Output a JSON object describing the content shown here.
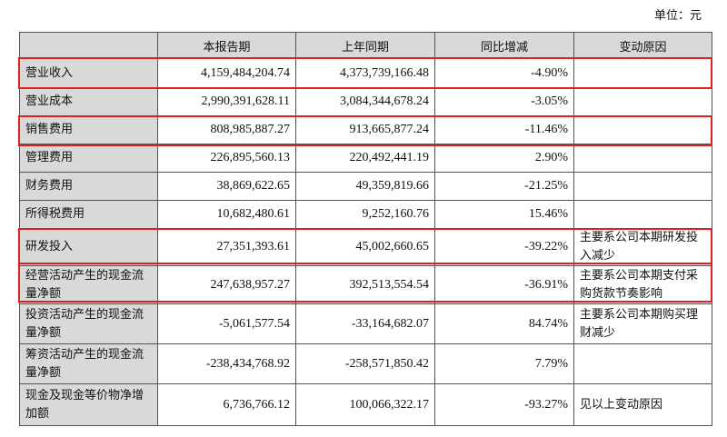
{
  "unit_label": "单位：元",
  "headers": [
    "",
    "本报告期",
    "上年同期",
    "同比增减",
    "变动原因"
  ],
  "rows": [
    {
      "item": "营业收入",
      "current": "4,159,484,204.74",
      "prior": "4,373,739,166.48",
      "change": "-4.90%",
      "reason": "",
      "highlighted": true
    },
    {
      "item": "营业成本",
      "current": "2,990,391,628.11",
      "prior": "3,084,344,678.24",
      "change": "-3.05%",
      "reason": "",
      "highlighted": false
    },
    {
      "item": "销售费用",
      "current": "808,985,887.27",
      "prior": "913,665,877.24",
      "change": "-11.46%",
      "reason": "",
      "highlighted": true
    },
    {
      "item": "管理费用",
      "current": "226,895,560.13",
      "prior": "220,492,441.19",
      "change": "2.90%",
      "reason": "",
      "highlighted": false
    },
    {
      "item": "财务费用",
      "current": "38,869,622.65",
      "prior": "49,359,819.66",
      "change": "-21.25%",
      "reason": "",
      "highlighted": false
    },
    {
      "item": "所得税费用",
      "current": "10,682,480.61",
      "prior": "9,252,160.76",
      "change": "15.46%",
      "reason": "",
      "highlighted": false
    },
    {
      "item": "研发投入",
      "current": "27,351,393.61",
      "prior": "45,002,660.65",
      "change": "-39.22%",
      "reason": "主要系公司本期研发投入减少",
      "highlighted": true
    },
    {
      "item": "经营活动产生的现金流量净额",
      "current": "247,638,957.27",
      "prior": "392,513,554.54",
      "change": "-36.91%",
      "reason": "主要系公司本期支付采购货款节奏影响",
      "highlighted": true
    },
    {
      "item": "投资活动产生的现金流量净额",
      "current": "-5,061,577.54",
      "prior": "-33,164,682.07",
      "change": "84.74%",
      "reason": "主要系公司本期购买理财减少",
      "highlighted": false
    },
    {
      "item": "筹资活动产生的现金流量净额",
      "current": "-238,434,768.92",
      "prior": "-258,571,850.42",
      "change": "7.79%",
      "reason": "",
      "highlighted": false
    },
    {
      "item": "现金及现金等价物净增加额",
      "current": "6,736,766.12",
      "prior": "100,066,322.17",
      "change": "-93.27%",
      "reason": "见以上变动原因",
      "highlighted": false
    }
  ]
}
